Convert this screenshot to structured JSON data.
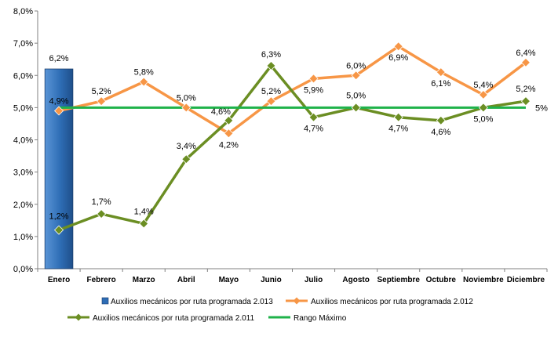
{
  "chart_data": {
    "type": "line",
    "categories": [
      "Enero",
      "Febrero",
      "Marzo",
      "Abril",
      "Mayo",
      "Junio",
      "Julio",
      "Agosto",
      "Septiembre",
      "Octubre",
      "Noviembre",
      "Diciembre"
    ],
    "ylim": [
      0,
      8
    ],
    "y_ticks": [
      0,
      1,
      2,
      3,
      4,
      5,
      6,
      7,
      8
    ],
    "y_tick_labels": [
      "0,0%",
      "1,0%",
      "2,0%",
      "3,0%",
      "4,0%",
      "5,0%",
      "6,0%",
      "7,0%",
      "8,0%"
    ],
    "grid": false,
    "legend_position": "bottom",
    "series": [
      {
        "name": "Auxilios mecánicos por ruta programada 2.013",
        "kind": "bar",
        "color": "#2e6db5",
        "label_color": "#5b4fc0",
        "values": [
          6.2,
          null,
          null,
          null,
          null,
          null,
          null,
          null,
          null,
          null,
          null,
          null
        ],
        "labels": [
          "6,2%",
          "",
          "",
          "",
          "",
          "",
          "",
          "",
          "",
          "",
          "",
          ""
        ]
      },
      {
        "name": "Auxilios mecánicos por ruta programada 2.012",
        "kind": "line",
        "color": "#f79646",
        "values": [
          4.9,
          5.2,
          5.8,
          5.0,
          4.2,
          5.2,
          5.9,
          6.0,
          6.9,
          6.1,
          5.4,
          6.4
        ],
        "labels": [
          "4,9%",
          "5,2%",
          "5,8%",
          "5,0%",
          "4,2%",
          "5,2%",
          "5,9%",
          "6,0%",
          "6,9%",
          "6,1%",
          "5,4%",
          "6,4%"
        ]
      },
      {
        "name": "Auxilios mecánicos por ruta programada 2.011",
        "kind": "line",
        "color": "#6b8e23",
        "values": [
          1.2,
          1.7,
          1.4,
          3.4,
          4.6,
          6.3,
          4.7,
          5.0,
          4.7,
          4.6,
          5.0,
          5.2
        ],
        "labels": [
          "1,2%",
          "1,7%",
          "1,4%",
          "3,4%",
          "4,6%",
          "6,3%",
          "4,7%",
          "5,0%",
          "4,7%",
          "4,6%",
          "5,0%",
          "5,2%"
        ]
      },
      {
        "name": "Rango Máximo",
        "kind": "line",
        "color": "#1fb24a",
        "values": [
          5,
          5,
          5,
          5,
          5,
          5,
          5,
          5,
          5,
          5,
          5,
          5
        ],
        "end_label": "5%",
        "end_label_color": "#9c8a1e"
      }
    ]
  }
}
